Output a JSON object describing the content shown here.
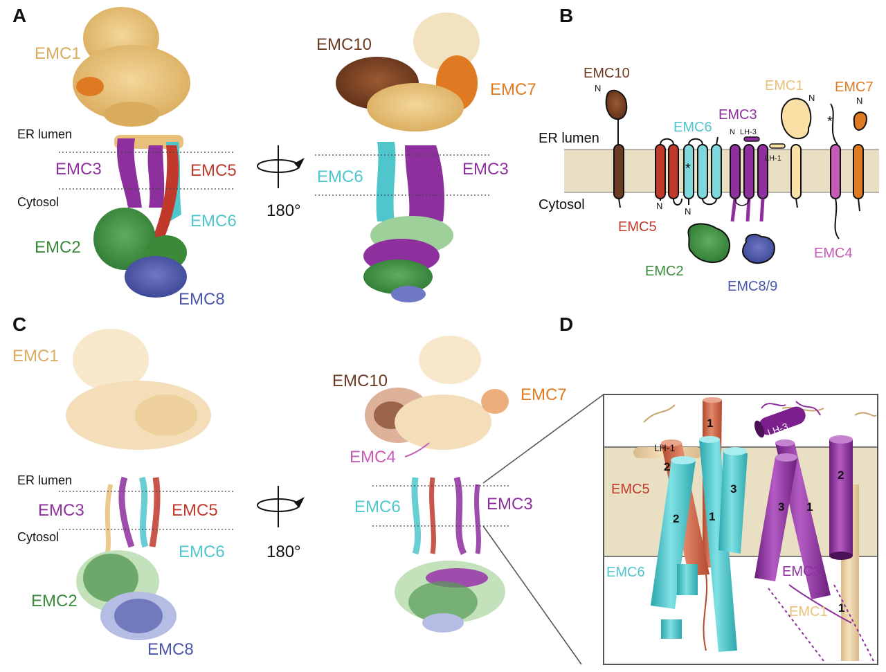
{
  "panels": {
    "a": "A",
    "b": "B",
    "c": "C",
    "d": "D"
  },
  "colors": {
    "emc1": "#e8c07a",
    "emc2": "#3a8a3a",
    "emc3": "#8e2f9e",
    "emc4": "#c65bb5",
    "emc5": "#c0392b",
    "emc6": "#4fc6cc",
    "emc7": "#e07a22",
    "emc8": "#4a55a8",
    "emc10": "#6b3a22",
    "membrane": "#e9dfc3"
  },
  "panelA": {
    "emc1": "EMC1",
    "emc3": "EMC3",
    "emc5": "EMC5",
    "emc6": "EMC6",
    "emc2": "EMC2",
    "emc8": "EMC8",
    "emc10": "EMC10",
    "emc7": "EMC7",
    "emc6b": "EMC6",
    "emc3b": "EMC3",
    "er_lumen": "ER lumen",
    "cytosol": "Cytosol",
    "rotation": "180°"
  },
  "panelB": {
    "emc10": "EMC10",
    "emc1": "EMC1",
    "emc7": "EMC7",
    "emc6": "EMC6",
    "emc3": "EMC3",
    "er_lumen": "ER lumen",
    "cytosol": "Cytosol",
    "emc5": "EMC5",
    "emc2": "EMC2",
    "emc89": "EMC8/9",
    "emc4": "EMC4",
    "lh3": "LH-3",
    "lh1": "LH-1",
    "n": "N",
    "star": "*"
  },
  "panelC": {
    "emc1": "EMC1",
    "er_lumen": "ER lumen",
    "emc3": "EMC3",
    "emc5": "EMC5",
    "cytosol": "Cytosol",
    "emc6": "EMC6",
    "emc2": "EMC2",
    "emc8": "EMC8",
    "emc10": "EMC10",
    "emc7": "EMC7",
    "emc4": "EMC4",
    "emc6b": "EMC6",
    "emc3b": "EMC3",
    "rotation": "180°"
  },
  "panelD": {
    "lh3": "LH-3",
    "lh1": "LH-1",
    "emc5": "EMC5",
    "emc6": "EMC6",
    "emc3": "EMC3",
    "emc1": "EMC1",
    "h1a": "1",
    "h2a": "2",
    "h2b": "2",
    "h1b": "1",
    "h3a": "3",
    "h3b": "3",
    "h1c": "1",
    "h2c": "2",
    "h1d": "1"
  }
}
